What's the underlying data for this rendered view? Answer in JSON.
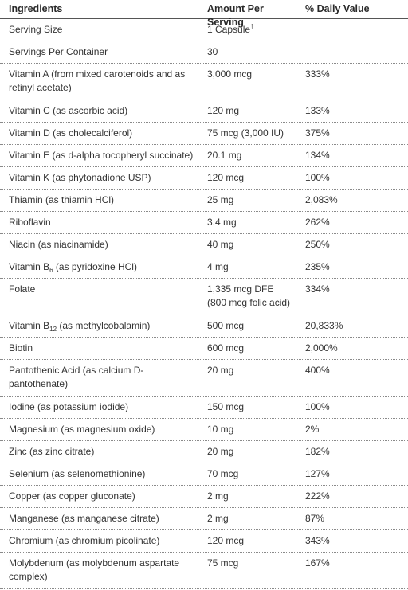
{
  "headers": {
    "ingredients": "Ingredients",
    "amount": "Amount Per Serving",
    "daily_value": "% Daily Value"
  },
  "rows": [
    {
      "name": "Serving Size",
      "amount": "1 Capsule",
      "amount_sup": "†",
      "dv": ""
    },
    {
      "name": "Servings Per Container",
      "amount": "30",
      "dv": ""
    },
    {
      "name": "Vitamin A (from mixed carotenoids and as retinyl acetate)",
      "amount": "3,000 mcg",
      "dv": "333%"
    },
    {
      "name": "Vitamin C (as ascorbic acid)",
      "amount": "120 mg",
      "dv": "133%"
    },
    {
      "name": "Vitamin D (as cholecalciferol)",
      "amount": "75 mcg (3,000 IU)",
      "dv": "375%"
    },
    {
      "name": "Vitamin E (as d-alpha tocopheryl succinate)",
      "amount": "20.1 mg",
      "dv": "134%"
    },
    {
      "name": "Vitamin K (as phytonadione USP)",
      "amount": "120 mcg",
      "dv": "100%"
    },
    {
      "name": "Thiamin (as thiamin HCl)",
      "amount": "25 mg",
      "dv": "2,083%"
    },
    {
      "name": "Riboflavin",
      "amount": "3.4 mg",
      "dv": "262%"
    },
    {
      "name": "Niacin (as niacinamide)",
      "amount": "40 mg",
      "dv": "250%"
    },
    {
      "name_pre": "Vitamin B",
      "name_sub": "6",
      "name_post": " (as pyridoxine HCl)",
      "amount": "4 mg",
      "dv": "235%"
    },
    {
      "name": "Folate",
      "amount": "1,335 mcg DFE (800 mcg folic acid)",
      "dv": "334%"
    },
    {
      "name_pre": "Vitamin B",
      "name_sub": "12",
      "name_post": " (as methylcobalamin)",
      "amount": "500 mcg",
      "dv": "20,833%"
    },
    {
      "name": "Biotin",
      "amount": "600 mcg",
      "dv": "2,000%"
    },
    {
      "name": "Pantothenic Acid (as calcium D-pantothenate)",
      "amount": "20 mg",
      "dv": "400%"
    },
    {
      "name": "Iodine (as potassium iodide)",
      "amount": "150 mcg",
      "dv": "100%"
    },
    {
      "name": "Magnesium (as magnesium oxide)",
      "amount": "10 mg",
      "dv": "2%"
    },
    {
      "name": "Zinc (as zinc citrate)",
      "amount": "20 mg",
      "dv": "182%"
    },
    {
      "name": "Selenium (as selenomethionine)",
      "amount": "70 mcg",
      "dv": "127%"
    },
    {
      "name": "Copper (as copper gluconate)",
      "amount": "2 mg",
      "dv": "222%"
    },
    {
      "name": "Manganese (as manganese citrate)",
      "amount": "2 mg",
      "dv": "87%"
    },
    {
      "name": "Chromium (as chromium picolinate)",
      "amount": "120 mcg",
      "dv": "343%"
    },
    {
      "name": "Molybdenum (as molybdenum aspartate complex)",
      "amount": "75 mcg",
      "dv": "167%"
    }
  ]
}
